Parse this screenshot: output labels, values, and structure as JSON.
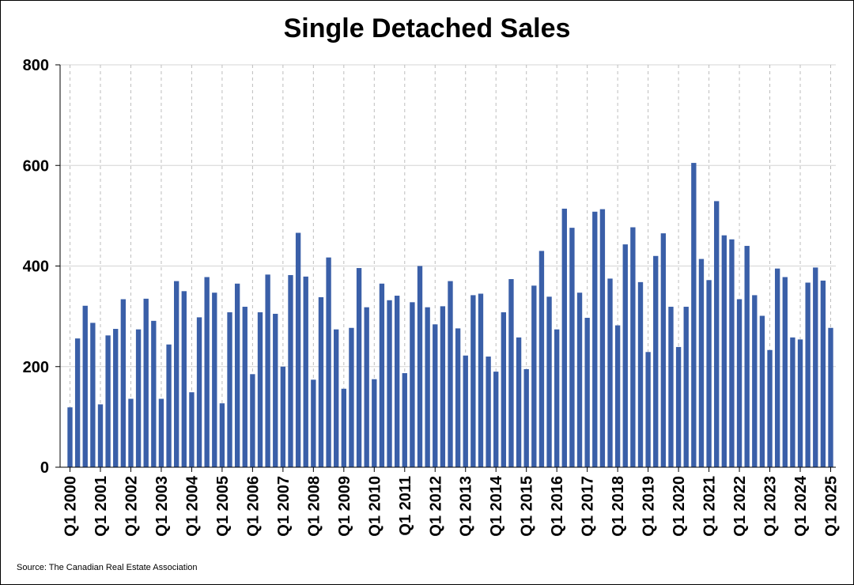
{
  "source": "Source: The Canadian Real Estate Association",
  "colors": {
    "bar": "#3A5FA8",
    "grid": "#d4d4d4",
    "axis": "#000000"
  },
  "chart_data": {
    "type": "bar",
    "title": "Single Detached Sales",
    "xlabel": "",
    "ylabel": "",
    "ylim": [
      0,
      800
    ],
    "yticks": [
      0,
      200,
      400,
      600,
      800
    ],
    "grid": {
      "horizontal": "solid",
      "vertical": "dashed"
    },
    "legend": "none",
    "categories": [
      "Q1 2000",
      "Q2 2000",
      "Q3 2000",
      "Q4 2000",
      "Q1 2001",
      "Q2 2001",
      "Q3 2001",
      "Q4 2001",
      "Q1 2002",
      "Q2 2002",
      "Q3 2002",
      "Q4 2002",
      "Q1 2003",
      "Q2 2003",
      "Q3 2003",
      "Q4 2003",
      "Q1 2004",
      "Q2 2004",
      "Q3 2004",
      "Q4 2004",
      "Q1 2005",
      "Q2 2005",
      "Q3 2005",
      "Q4 2005",
      "Q1 2006",
      "Q2 2006",
      "Q3 2006",
      "Q4 2006",
      "Q1 2007",
      "Q2 2007",
      "Q3 2007",
      "Q4 2007",
      "Q1 2008",
      "Q2 2008",
      "Q3 2008",
      "Q4 2008",
      "Q1 2009",
      "Q2 2009",
      "Q3 2009",
      "Q4 2009",
      "Q1 2010",
      "Q2 2010",
      "Q3 2010",
      "Q4 2010",
      "Q1 2011",
      "Q2 2011",
      "Q3 2011",
      "Q4 2011",
      "Q1 2012",
      "Q2 2012",
      "Q3 2012",
      "Q4 2012",
      "Q1 2013",
      "Q2 2013",
      "Q3 2013",
      "Q4 2013",
      "Q1 2014",
      "Q2 2014",
      "Q3 2014",
      "Q4 2014",
      "Q1 2015",
      "Q2 2015",
      "Q3 2015",
      "Q4 2015",
      "Q1 2016",
      "Q2 2016",
      "Q3 2016",
      "Q4 2016",
      "Q1 2017",
      "Q2 2017",
      "Q3 2017",
      "Q4 2017",
      "Q1 2018",
      "Q2 2018",
      "Q3 2018",
      "Q4 2018",
      "Q1 2019",
      "Q2 2019",
      "Q3 2019",
      "Q4 2019",
      "Q1 2020",
      "Q2 2020",
      "Q3 2020",
      "Q4 2020",
      "Q1 2021",
      "Q2 2021",
      "Q3 2021",
      "Q4 2021",
      "Q1 2022",
      "Q2 2022",
      "Q3 2022",
      "Q4 2022",
      "Q1 2023",
      "Q2 2023",
      "Q3 2023",
      "Q4 2023",
      "Q1 2024",
      "Q2 2024",
      "Q3 2024",
      "Q4 2024",
      "Q1 2025"
    ],
    "xtick_labels": [
      "Q1 2000",
      "Q1 2001",
      "Q1 2002",
      "Q1 2003",
      "Q1 2004",
      "Q1 2005",
      "Q1 2006",
      "Q1 2007",
      "Q1 2008",
      "Q1 2009",
      "Q1 2010",
      "Q1 2011",
      "Q1 2012",
      "Q1 2013",
      "Q1 2014",
      "Q1 2015",
      "Q1 2016",
      "Q1 2017",
      "Q1 2018",
      "Q1 2019",
      "Q1 2020",
      "Q1 2021",
      "Q1 2022",
      "Q1 2023",
      "Q1 2024",
      "Q1 2025"
    ],
    "series": [
      {
        "values": [
          119,
          256,
          321,
          287,
          125,
          262,
          275,
          334,
          136,
          274,
          335,
          291,
          136,
          244,
          370,
          350,
          149,
          298,
          378,
          347,
          127,
          308,
          365,
          319,
          185,
          308,
          383,
          305,
          200,
          382,
          466,
          379,
          174,
          338,
          417,
          274,
          156,
          277,
          396,
          318,
          175,
          365,
          332,
          341,
          187,
          328,
          400,
          318,
          284,
          320,
          370,
          276,
          222,
          342,
          345,
          220,
          190,
          308,
          374,
          258,
          195,
          361,
          430,
          339,
          274,
          514,
          476,
          347,
          297,
          508,
          513,
          375,
          282,
          443,
          477,
          368,
          229,
          420,
          465,
          319,
          239,
          319,
          605,
          414,
          372,
          529,
          461,
          453,
          334,
          440,
          342,
          301,
          233,
          395,
          378,
          258,
          254,
          367,
          397,
          371,
          277
        ]
      }
    ]
  }
}
